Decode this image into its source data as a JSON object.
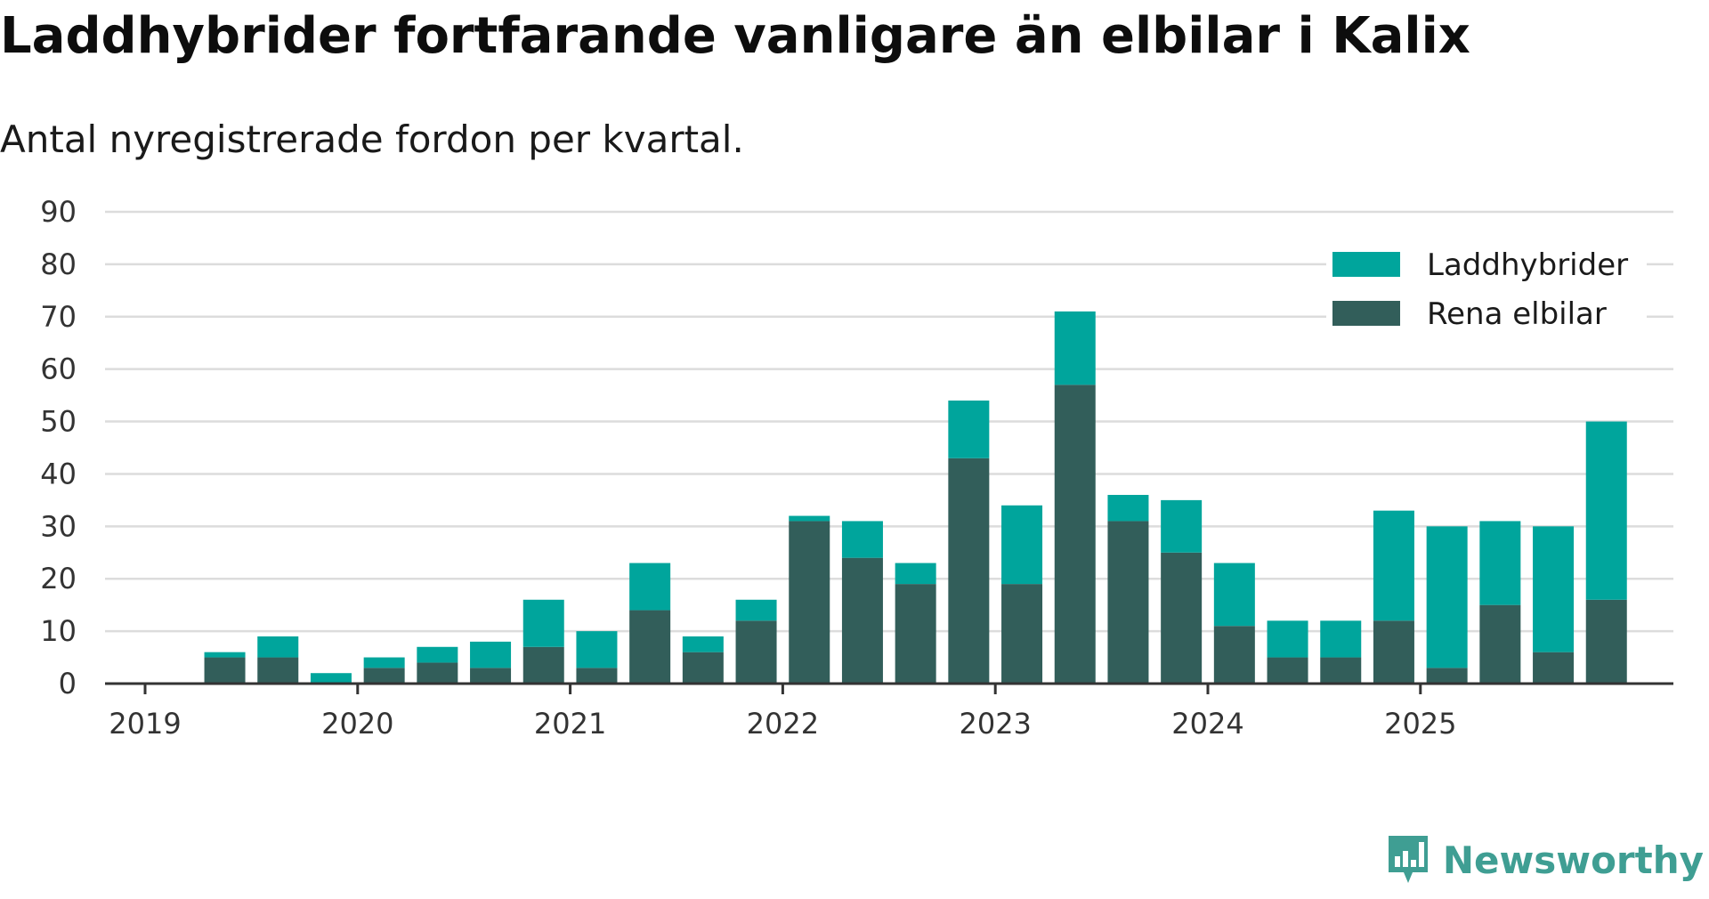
{
  "header": {
    "title": "Laddhybrider fortfarande vanligare än elbilar i Kalix",
    "subtitle": "Antal nyregistrerade fordon per kvartal."
  },
  "brand": {
    "name": "Newsworthy",
    "icon": "newsworthy-logo-icon"
  },
  "colors": {
    "Laddhybrider": "#00a59c",
    "Rena elbilar": "#325e5a",
    "grid": "#dcdcdc",
    "axis": "#333333",
    "brand": "#3f9e93"
  },
  "chart_data": {
    "type": "bar",
    "stacked": true,
    "title": "Laddhybrider fortfarande vanligare än elbilar i Kalix",
    "subtitle": "Antal nyregistrerade fordon per kvartal.",
    "xlabel": "",
    "ylabel": "",
    "ylim": [
      0,
      90
    ],
    "yticks": [
      0,
      10,
      20,
      30,
      40,
      50,
      60,
      70,
      80,
      90
    ],
    "xticks": [
      "2019",
      "2020",
      "2021",
      "2022",
      "2023",
      "2024",
      "2025"
    ],
    "grid": true,
    "legend_position": "top-right",
    "categories": [
      "2019 Q2",
      "2019 Q3",
      "2019 Q4",
      "2020 Q1",
      "2020 Q2",
      "2020 Q3",
      "2020 Q4",
      "2021 Q1",
      "2021 Q2",
      "2021 Q3",
      "2021 Q4",
      "2022 Q1",
      "2022 Q2",
      "2022 Q3",
      "2022 Q4",
      "2023 Q1",
      "2023 Q2",
      "2023 Q3",
      "2023 Q4",
      "2024 Q1",
      "2024 Q2",
      "2024 Q3",
      "2024 Q4",
      "2025 Q1",
      "2025 Q2",
      "2025 Q3",
      "2025 Q4"
    ],
    "series": [
      {
        "name": "Rena elbilar",
        "values": [
          5,
          5,
          0,
          3,
          4,
          3,
          7,
          3,
          14,
          6,
          12,
          31,
          24,
          19,
          43,
          19,
          57,
          31,
          25,
          11,
          5,
          5,
          12,
          3,
          15,
          6,
          16
        ]
      },
      {
        "name": "Laddhybrider",
        "values": [
          1,
          4,
          2,
          2,
          3,
          5,
          9,
          7,
          9,
          3,
          4,
          1,
          7,
          4,
          11,
          15,
          14,
          5,
          10,
          12,
          7,
          7,
          21,
          27,
          16,
          24,
          34
        ]
      }
    ]
  }
}
